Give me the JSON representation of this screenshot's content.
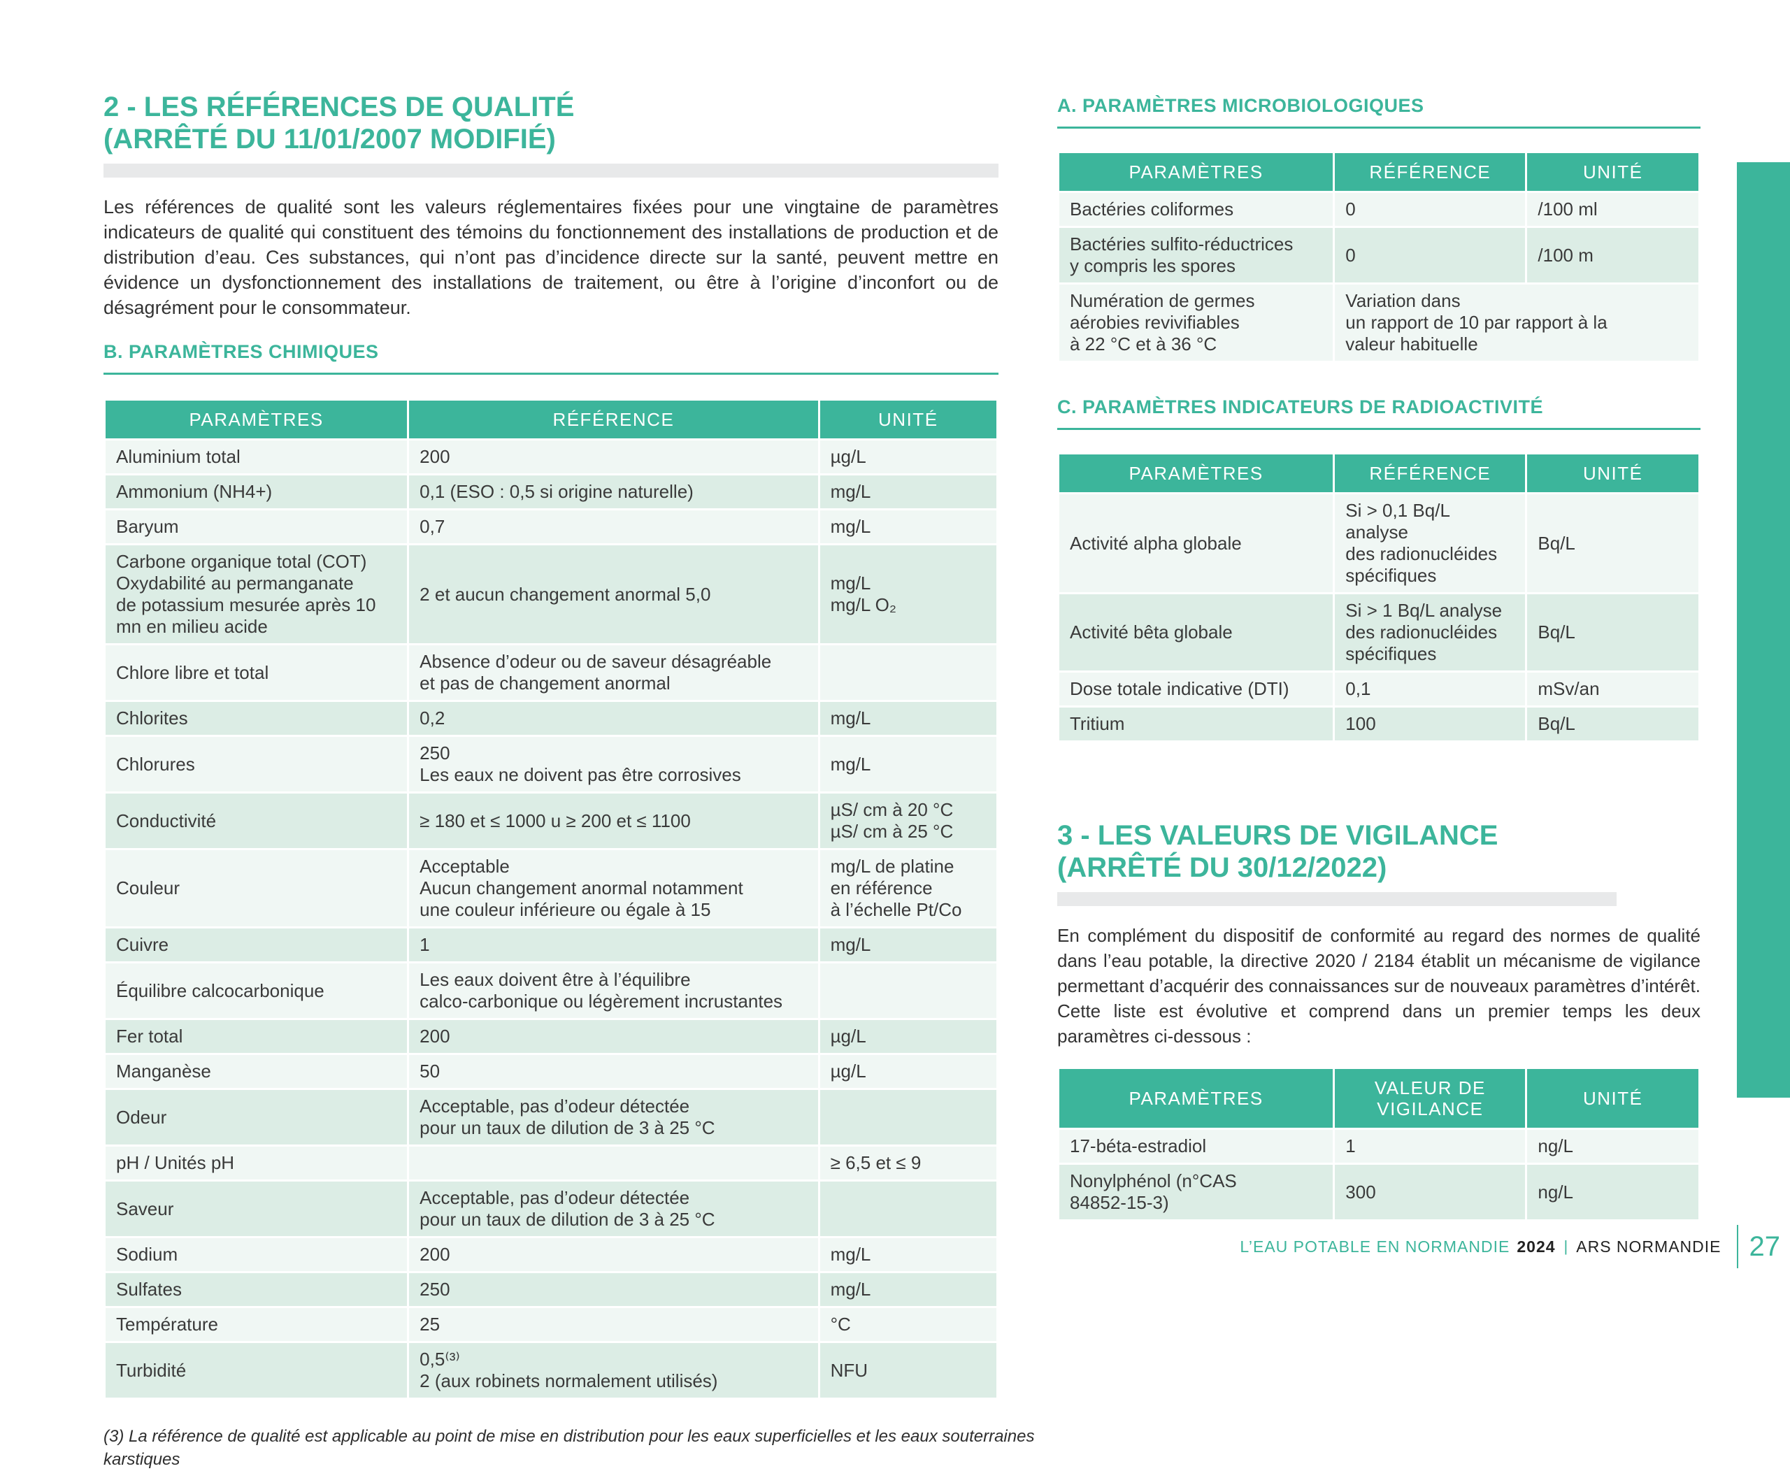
{
  "page": {
    "colors": {
      "accent": "#3cb59b",
      "row_light": "#f0f7f4",
      "row_tint": "#dcede5",
      "title_band": "#e8e9ea"
    },
    "footer": {
      "brand": "L’EAU POTABLE EN NORMANDIE",
      "year": "2024",
      "separator": "|",
      "org": "ARS NORMANDIE",
      "page_number": "27"
    }
  },
  "section2": {
    "title_line1": "2 - LES RÉFÉRENCES DE QUALITÉ",
    "title_line2": "(ARRÊTÉ DU 11/01/2007 MODIFIÉ)",
    "intro": "Les références de qualité sont les valeurs réglementaires fixées pour une vingtaine de paramètres indicateurs de qualité qui constituent des témoins du fonctionnement des installations de production et de distribution d’eau. Ces substances, qui n’ont pas d’incidence directe sur la santé, peuvent mettre en évidence un dysfonctionnement des installations de traitement, ou être à l’origine d’inconfort ou de désagrément pour le consommateur.",
    "chimiques": {
      "title": "B. PARAMÈTRES CHIMIQUES",
      "headers": [
        "PARAMÈTRES",
        "RÉFÉRENCE",
        "UNITÉ"
      ],
      "rows": [
        [
          "Aluminium total",
          "200",
          "µg/L"
        ],
        [
          "Ammonium (NH4+)",
          "0,1 (ESO : 0,5 si origine naturelle)",
          "mg/L"
        ],
        [
          "Baryum",
          "0,7",
          "mg/L"
        ],
        [
          "Carbone organique total (COT)\nOxydabilité au permanganate\nde potassium mesurée après 10\nmn en milieu acide",
          "2 et aucun changement anormal 5,0",
          "mg/L\nmg/L O₂"
        ],
        [
          "Chlore libre et total",
          "Absence d’odeur ou de saveur désagréable\net pas de changement anormal",
          ""
        ],
        [
          "Chlorites",
          "0,2",
          "mg/L"
        ],
        [
          "Chlorures",
          "250\nLes eaux ne doivent pas être corrosives",
          "mg/L"
        ],
        [
          "Conductivité",
          "≥ 180 et ≤ 1000 u ≥ 200 et ≤ 1100",
          "µS/ cm à 20 °C\nµS/ cm à 25 °C"
        ],
        [
          "Couleur",
          "Acceptable\nAucun changement anormal notamment\nune couleur inférieure ou égale à 15",
          "mg/L de platine\nen référence\nà l’échelle Pt/Co"
        ],
        [
          "Cuivre",
          "1",
          "mg/L"
        ],
        [
          "Équilibre calcocarbonique",
          "Les eaux doivent être à l’équilibre\ncalco-carbonique ou légèrement incrustantes",
          ""
        ],
        [
          "Fer total",
          "200",
          "µg/L"
        ],
        [
          "Manganèse",
          "50",
          "µg/L"
        ],
        [
          "Odeur",
          "Acceptable, pas d’odeur détectée\npour un taux de dilution de 3 à 25 °C",
          ""
        ],
        [
          "pH / Unités pH",
          "",
          "≥ 6,5 et ≤ 9"
        ],
        [
          "Saveur",
          "Acceptable, pas d’odeur détectée\npour un taux de dilution de 3 à 25 °C",
          ""
        ],
        [
          "Sodium",
          "200",
          "mg/L"
        ],
        [
          "Sulfates",
          "250",
          "mg/L"
        ],
        [
          "Température",
          "25",
          "°C"
        ],
        [
          "Turbidité",
          "0,5⁽³⁾\n2 (aux robinets normalement utilisés)",
          "NFU"
        ]
      ]
    },
    "footnote": "(3) La référence de qualité est applicable au point de mise en distribution pour les eaux superficielles et les eaux souterraines karstiques"
  },
  "microbiologiques": {
    "title": "A. PARAMÈTRES MICROBIOLOGIQUES",
    "headers": [
      "PARAMÈTRES",
      "RÉFÉRENCE",
      "UNITÉ"
    ],
    "rows": [
      [
        "Bactéries coliformes",
        "0",
        "/100 ml"
      ],
      [
        "Bactéries sulfito-réductrices\ny compris les spores",
        "0",
        "/100 m"
      ],
      [
        "Numération de germes\naérobies revivifiables\nà 22 °C et à 36 °C",
        "Variation dans\nun rapport de 10 par rapport à la\nvaleur habituelle",
        null
      ]
    ]
  },
  "radioactivite": {
    "title": "C. PARAMÈTRES INDICATEURS DE RADIOACTIVITÉ",
    "headers": [
      "PARAMÈTRES",
      "RÉFÉRENCE",
      "UNITÉ"
    ],
    "rows": [
      [
        "Activité alpha globale",
        "Si > 0,1 Bq/L analyse\ndes radionucléides\nspécifiques",
        "Bq/L"
      ],
      [
        "Activité bêta globale",
        "Si > 1 Bq/L analyse\ndes radionucléides\nspécifiques",
        "Bq/L"
      ],
      [
        "Dose totale indicative (DTI)",
        "0,1",
        "mSv/an"
      ],
      [
        "Tritium",
        "100",
        "Bq/L"
      ]
    ]
  },
  "section3": {
    "title_line1": "3 - LES VALEURS DE VIGILANCE",
    "title_line2": "(ARRÊTÉ DU 30/12/2022)",
    "intro": "En complément du dispositif de conformité au regard des normes de qualité dans l’eau potable, la directive 2020 / 2184 établit un mécanisme de vigilance permettant d’acquérir des connaissances sur de nouveaux paramètres d’intérêt. Cette liste est évolutive et comprend dans un premier temps les deux paramètres ci-dessous :",
    "vigilance": {
      "headers": [
        "PARAMÈTRES",
        "VALEUR DE\nVIGILANCE",
        "UNITÉ"
      ],
      "rows": [
        [
          "17-béta-estradiol",
          "1",
          "ng/L"
        ],
        [
          "Nonylphénol (n°CAS\n84852-15-3)",
          "300",
          "ng/L"
        ]
      ]
    }
  }
}
